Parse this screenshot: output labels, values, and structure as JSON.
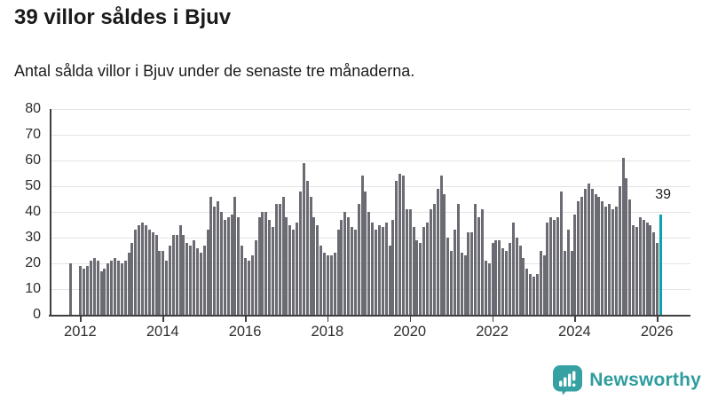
{
  "header": {
    "title": "39 villor såldes i Bjuv",
    "subtitle": "Antal sålda villor i Bjuv under de senaste tre månaderna."
  },
  "footer": {
    "brand": "Newsworthy",
    "logo_color": "#35a1a2"
  },
  "chart_data": {
    "type": "bar",
    "title": "39 villor såldes i Bjuv",
    "subtitle": "Antal sålda villor i Bjuv under de senaste tre månaderna.",
    "frequency": "monthly",
    "x_start": "2011-10",
    "x_end": "2026-02",
    "values": [
      20,
      0,
      0,
      19,
      18,
      19,
      21,
      22,
      21,
      17,
      18,
      20,
      21,
      22,
      21,
      20,
      21,
      24,
      28,
      33,
      35,
      36,
      35,
      33,
      32,
      31,
      25,
      25,
      21,
      27,
      31,
      31,
      35,
      31,
      28,
      27,
      29,
      26,
      24,
      27,
      33,
      46,
      42,
      44,
      40,
      37,
      38,
      39,
      46,
      38,
      27,
      22,
      21,
      23,
      29,
      38,
      40,
      40,
      37,
      34,
      43,
      43,
      46,
      38,
      35,
      33,
      36,
      48,
      59,
      52,
      46,
      38,
      35,
      27,
      24,
      23,
      23,
      24,
      33,
      37,
      40,
      38,
      34,
      33,
      43,
      54,
      48,
      40,
      36,
      33,
      35,
      34,
      36,
      27,
      37,
      52,
      55,
      54,
      41,
      41,
      34,
      29,
      28,
      34,
      36,
      41,
      43,
      49,
      54,
      47,
      30,
      25,
      33,
      43,
      24,
      23,
      32,
      32,
      43,
      38,
      41,
      21,
      20,
      28,
      29,
      29,
      26,
      25,
      28,
      36,
      30,
      27,
      22,
      18,
      16,
      15,
      16,
      25,
      23,
      36,
      38,
      37,
      38,
      48,
      25,
      33,
      25,
      39,
      44,
      46,
      49,
      51,
      49,
      47,
      46,
      44,
      42,
      43,
      41,
      42,
      50,
      61,
      53,
      45,
      35,
      34,
      38,
      37,
      36,
      35,
      32,
      28,
      39
    ],
    "ylim": [
      0,
      80
    ],
    "y_ticks": [
      0,
      10,
      20,
      30,
      40,
      50,
      60,
      70,
      80
    ],
    "x_tick_labels": [
      "2012",
      "2014",
      "2016",
      "2018",
      "2020",
      "2022",
      "2024",
      "2026"
    ],
    "bar_color": "#6b6b73",
    "grid_color": "#e4e4e4",
    "axis_color": "#3f3f3f",
    "grid": true,
    "legend": false,
    "highlight": {
      "index": 172,
      "value": 39,
      "label": "39",
      "color": "#0ba3a9"
    }
  }
}
